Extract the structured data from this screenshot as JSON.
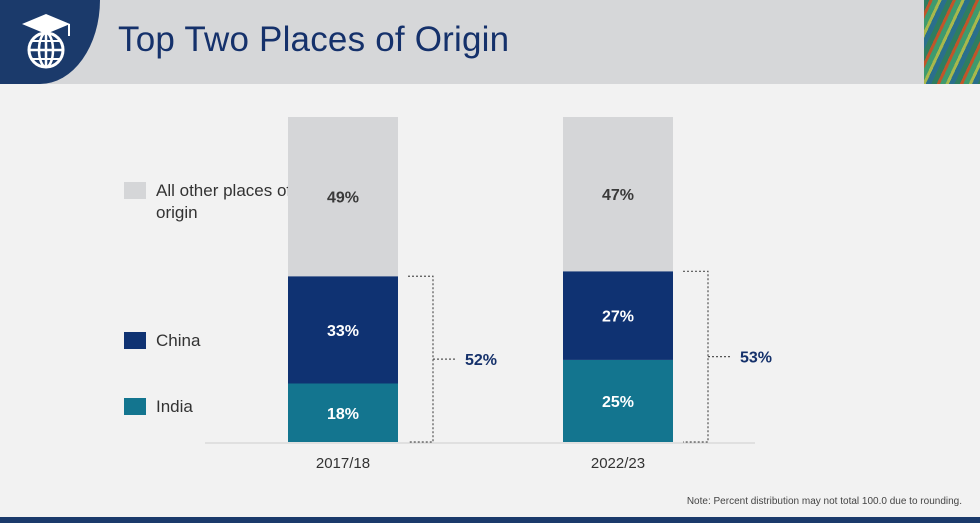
{
  "header": {
    "title": "Top Two Places of Origin",
    "logo_icon": "globe-graduation-cap-icon"
  },
  "colors": {
    "header_bg": "#d6d7d9",
    "logo_bg": "#1b3a6b",
    "title": "#15316b",
    "all_other": "#d5d6d8",
    "china": "#0f3272",
    "india": "#13758f",
    "bracket_label": "#15316b"
  },
  "legend": [
    {
      "key": "all_other",
      "label": "All other places of origin",
      "color": "#d5d6d8"
    },
    {
      "key": "china",
      "label": "China",
      "color": "#0f3272"
    },
    {
      "key": "india",
      "label": "India",
      "color": "#13758f"
    }
  ],
  "chart_data": {
    "type": "bar",
    "stacked": true,
    "unit": "%",
    "categories": [
      "2017/18",
      "2022/23"
    ],
    "series": [
      {
        "name": "India",
        "values": [
          18,
          25
        ],
        "labels": [
          "18%",
          "25%"
        ],
        "color": "#13758f"
      },
      {
        "name": "China",
        "values": [
          33,
          27
        ],
        "labels": [
          "33%",
          "27%"
        ],
        "color": "#0f3272"
      },
      {
        "name": "All other places of origin",
        "values": [
          49,
          47
        ],
        "labels": [
          "49%",
          "47%"
        ],
        "color": "#d5d6d8"
      }
    ],
    "combined_share": {
      "values": [
        52,
        53
      ],
      "labels": [
        "52%",
        "53%"
      ]
    },
    "ylim": [
      0,
      100
    ]
  },
  "note": "Note: Percent distribution may not total 100.0 due to rounding."
}
